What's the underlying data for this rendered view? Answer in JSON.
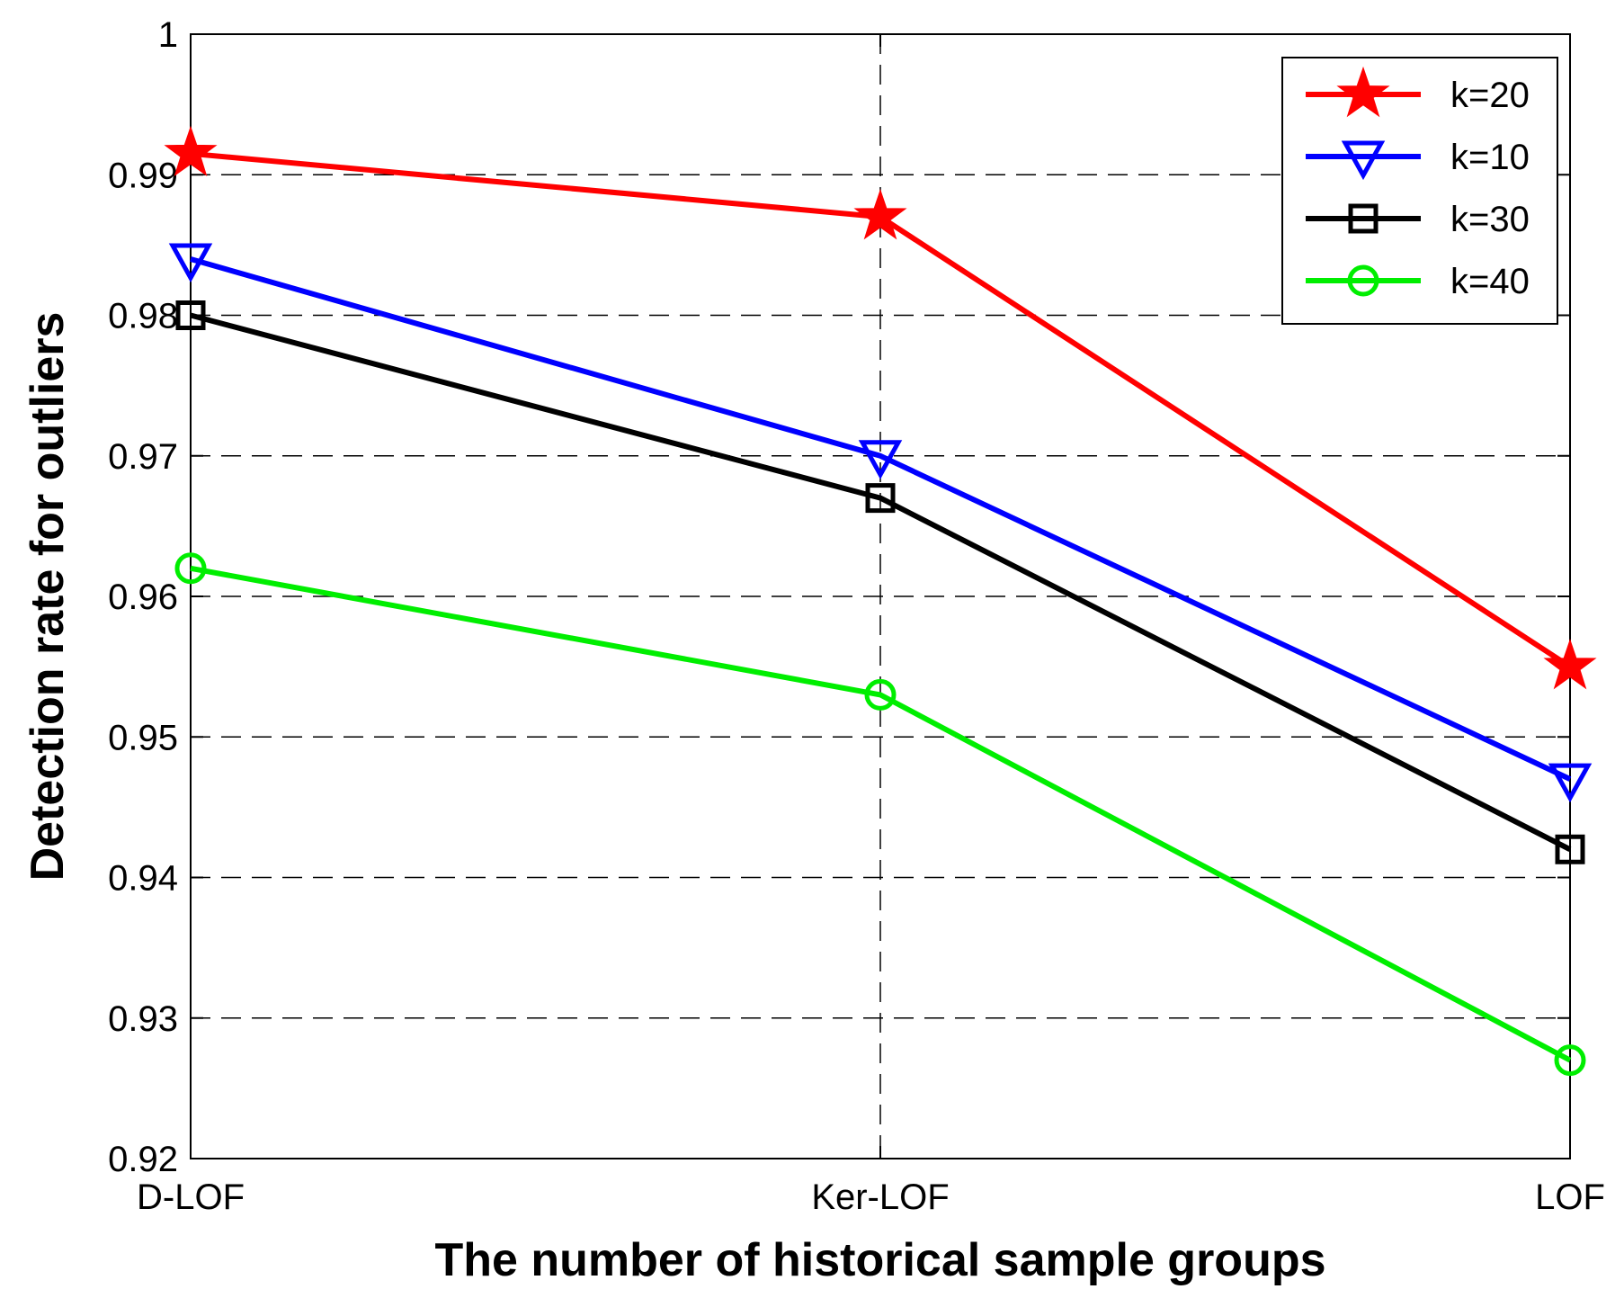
{
  "chart_data": {
    "type": "line",
    "title": "",
    "xlabel": "The number of historical sample groups",
    "ylabel": "Detection rate for outliers",
    "categories": [
      "D-LOF",
      "Ker-LOF",
      "LOF"
    ],
    "ylim": [
      0.92,
      1.0
    ],
    "yticks": [
      0.92,
      0.93,
      0.94,
      0.95,
      0.96,
      0.97,
      0.98,
      0.99,
      1.0
    ],
    "ytick_labels": [
      "0.92",
      "0.93",
      "0.94",
      "0.95",
      "0.96",
      "0.97",
      "0.98",
      "0.99",
      "1"
    ],
    "grid": true,
    "legend_position": "top-right",
    "series": [
      {
        "name": "k=20",
        "color": "#ff0000",
        "marker": "star",
        "values": [
          0.9915,
          0.987,
          0.955
        ]
      },
      {
        "name": "k=10",
        "color": "#0000ff",
        "marker": "triangle-down",
        "values": [
          0.984,
          0.97,
          0.947
        ]
      },
      {
        "name": "k=30",
        "color": "#000000",
        "marker": "square",
        "values": [
          0.98,
          0.967,
          0.942
        ]
      },
      {
        "name": "k=40",
        "color": "#00ee00",
        "marker": "circle",
        "values": [
          0.962,
          0.953,
          0.927
        ]
      }
    ]
  }
}
